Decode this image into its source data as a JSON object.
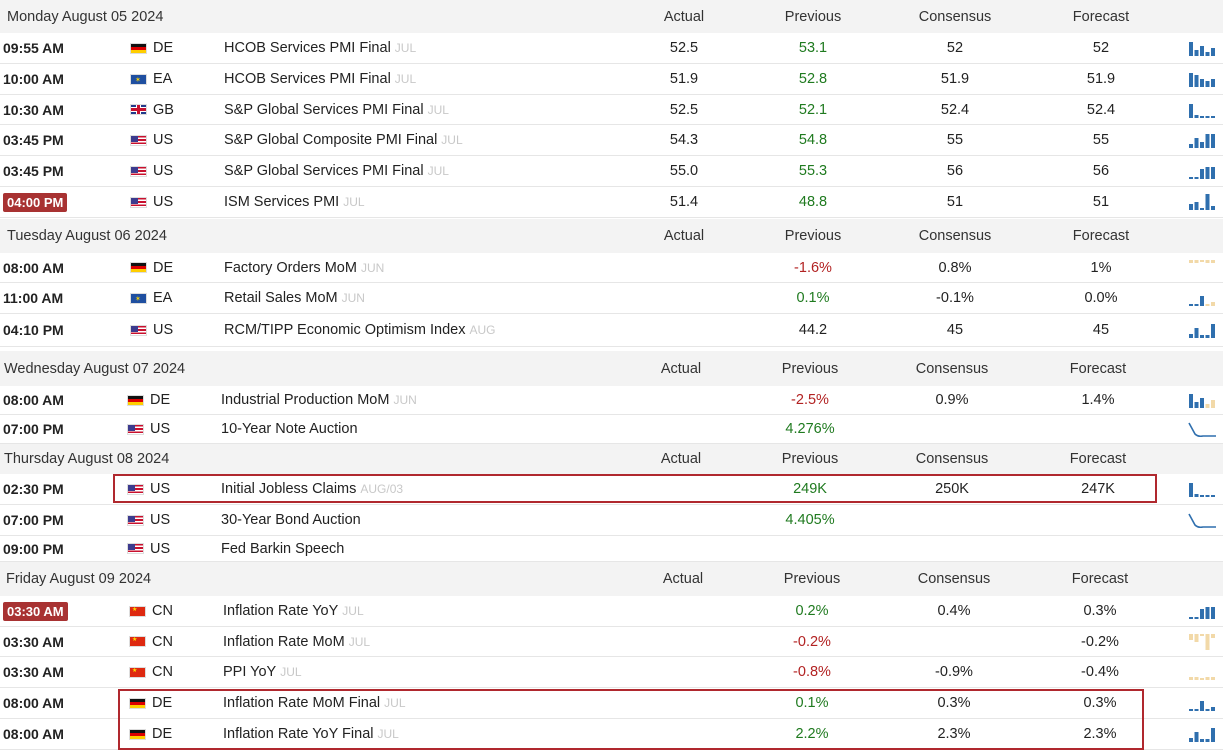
{
  "columns": {
    "actual": "Actual",
    "previous": "Previous",
    "consensus": "Consensus",
    "forecast": "Forecast"
  },
  "sections": [
    {
      "date": "Monday August 05 2024",
      "rows": [
        {
          "time": "09:55 AM",
          "flag": "DE",
          "country": "DE",
          "event": "HCOB Services PMI Final",
          "ref": "JUL",
          "actual": "52.5",
          "previous": "53.1",
          "prev_color": "green",
          "consensus": "52",
          "forecast": "52",
          "spark": "bar-blue",
          "spark_icon": "bar-chart-icon"
        },
        {
          "time": "10:00 AM",
          "flag": "EA",
          "country": "EA",
          "event": "HCOB Services PMI Final",
          "ref": "JUL",
          "actual": "51.9",
          "previous": "52.8",
          "prev_color": "green",
          "consensus": "51.9",
          "forecast": "51.9",
          "spark": "bar-blue",
          "spark_icon": "bar-chart-icon"
        },
        {
          "time": "10:30 AM",
          "flag": "GB",
          "country": "GB",
          "event": "S&P Global Services PMI Final",
          "ref": "JUL",
          "actual": "52.5",
          "previous": "52.1",
          "prev_color": "green",
          "consensus": "52.4",
          "forecast": "52.4",
          "spark": "bar-blue",
          "spark_icon": "bar-chart-icon"
        },
        {
          "time": "03:45 PM",
          "flag": "US",
          "country": "US",
          "event": "S&P Global Composite PMI Final",
          "ref": "JUL",
          "actual": "54.3",
          "previous": "54.8",
          "prev_color": "green",
          "consensus": "55",
          "forecast": "55",
          "spark": "bar-blue",
          "spark_icon": "bar-chart-icon"
        },
        {
          "time": "03:45 PM",
          "flag": "US",
          "country": "US",
          "event": "S&P Global Services PMI Final",
          "ref": "JUL",
          "actual": "55.0",
          "previous": "55.3",
          "prev_color": "green",
          "consensus": "56",
          "forecast": "56",
          "spark": "bar-blue",
          "spark_icon": "bar-chart-icon"
        },
        {
          "time": "04:00 PM",
          "badge": true,
          "flag": "US",
          "country": "US",
          "event": "ISM Services PMI",
          "ref": "JUL",
          "actual": "51.4",
          "previous": "48.8",
          "prev_color": "green",
          "consensus": "51",
          "forecast": "51",
          "spark": "bar-blue",
          "spark_icon": "bar-chart-icon"
        }
      ]
    },
    {
      "date": "Tuesday August 06 2024",
      "rows": [
        {
          "time": "08:00 AM",
          "flag": "DE",
          "country": "DE",
          "event": "Factory Orders MoM",
          "ref": "JUN",
          "actual": "",
          "previous": "-1.6%",
          "prev_color": "red",
          "consensus": "0.8%",
          "forecast": "1%",
          "spark": "bar-tan",
          "spark_icon": "bar-chart-icon"
        },
        {
          "time": "11:00 AM",
          "flag": "EA",
          "country": "EA",
          "event": "Retail Sales MoM",
          "ref": "JUN",
          "actual": "",
          "previous": "0.1%",
          "prev_color": "green",
          "consensus": "-0.1%",
          "forecast": "0.0%",
          "spark": "bar-mix",
          "spark_icon": "bar-chart-icon"
        },
        {
          "time": "04:10 PM",
          "flag": "US",
          "country": "US",
          "event": "RCM/TIPP Economic Optimism Index",
          "ref": "AUG",
          "actual": "",
          "previous": "44.2",
          "prev_color": "dark",
          "consensus": "45",
          "forecast": "45",
          "spark": "bar-blue",
          "spark_icon": "bar-chart-icon"
        }
      ]
    },
    {
      "date": "Wednesday August 07 2024",
      "rows": [
        {
          "time": "08:00 AM",
          "flag": "DE",
          "country": "DE",
          "event": "Industrial Production MoM",
          "ref": "JUN",
          "actual": "",
          "previous": "-2.5%",
          "prev_color": "red",
          "consensus": "0.9%",
          "forecast": "1.4%",
          "spark": "bar-mix",
          "spark_icon": "bar-chart-icon"
        },
        {
          "time": "07:00 PM",
          "flag": "US",
          "country": "US",
          "event": "10-Year Note Auction",
          "ref": "",
          "actual": "",
          "previous": "4.276%",
          "prev_color": "green",
          "consensus": "",
          "forecast": "",
          "spark": "line",
          "spark_icon": "line-chart-icon"
        }
      ]
    },
    {
      "date": "Thursday August 08 2024",
      "rows": [
        {
          "time": "02:30 PM",
          "flag": "US",
          "country": "US",
          "event": "Initial Jobless Claims",
          "ref": "AUG/03",
          "actual": "",
          "previous": "249K",
          "prev_color": "green",
          "consensus": "250K",
          "forecast": "247K",
          "spark": "bar-blue",
          "spark_icon": "bar-chart-icon"
        },
        {
          "time": "07:00 PM",
          "flag": "US",
          "country": "US",
          "event": "30-Year Bond Auction",
          "ref": "",
          "actual": "",
          "previous": "4.405%",
          "prev_color": "green",
          "consensus": "",
          "forecast": "",
          "spark": "line",
          "spark_icon": "line-chart-icon"
        },
        {
          "time": "09:00 PM",
          "flag": "US",
          "country": "US",
          "event": "Fed Barkin Speech",
          "ref": "",
          "actual": "",
          "previous": "",
          "prev_color": "dark",
          "consensus": "",
          "forecast": "",
          "spark": "",
          "spark_icon": ""
        }
      ]
    },
    {
      "date": "Friday August 09 2024",
      "rows": [
        {
          "time": "03:30 AM",
          "badge": true,
          "flag": "CN",
          "country": "CN",
          "event": "Inflation Rate YoY",
          "ref": "JUL",
          "actual": "",
          "previous": "0.2%",
          "prev_color": "green",
          "consensus": "0.4%",
          "forecast": "0.3%",
          "spark": "bar-blue",
          "spark_icon": "bar-chart-icon"
        },
        {
          "time": "03:30 AM",
          "flag": "CN",
          "country": "CN",
          "event": "Inflation Rate MoM",
          "ref": "JUL",
          "actual": "",
          "previous": "-0.2%",
          "prev_color": "red",
          "consensus": "",
          "forecast": "-0.2%",
          "spark": "bar-tan",
          "spark_icon": "bar-chart-icon"
        },
        {
          "time": "03:30 AM",
          "flag": "CN",
          "country": "CN",
          "event": "PPI YoY",
          "ref": "JUL",
          "actual": "",
          "previous": "-0.8%",
          "prev_color": "red",
          "consensus": "-0.9%",
          "forecast": "-0.4%",
          "spark": "bar-tan",
          "spark_icon": "bar-chart-icon"
        },
        {
          "time": "08:00 AM",
          "flag": "DE",
          "country": "DE",
          "event": "Inflation Rate MoM Final",
          "ref": "JUL",
          "actual": "",
          "previous": "0.1%",
          "prev_color": "green",
          "consensus": "0.3%",
          "forecast": "0.3%",
          "spark": "bar-blue",
          "spark_icon": "bar-chart-icon"
        },
        {
          "time": "08:00 AM",
          "flag": "DE",
          "country": "DE",
          "event": "Inflation Rate YoY Final",
          "ref": "JUL",
          "actual": "",
          "previous": "2.2%",
          "prev_color": "green",
          "consensus": "2.3%",
          "forecast": "2.3%",
          "spark": "bar-blue",
          "spark_icon": "bar-chart-icon"
        }
      ]
    }
  ],
  "colors": {
    "accent_red": "#a83232",
    "green": "#1f7a1f",
    "red": "#b22222",
    "spark_blue": "#2f6fae",
    "spark_tan": "#f2d9a8",
    "highlight": "#b0282e"
  }
}
